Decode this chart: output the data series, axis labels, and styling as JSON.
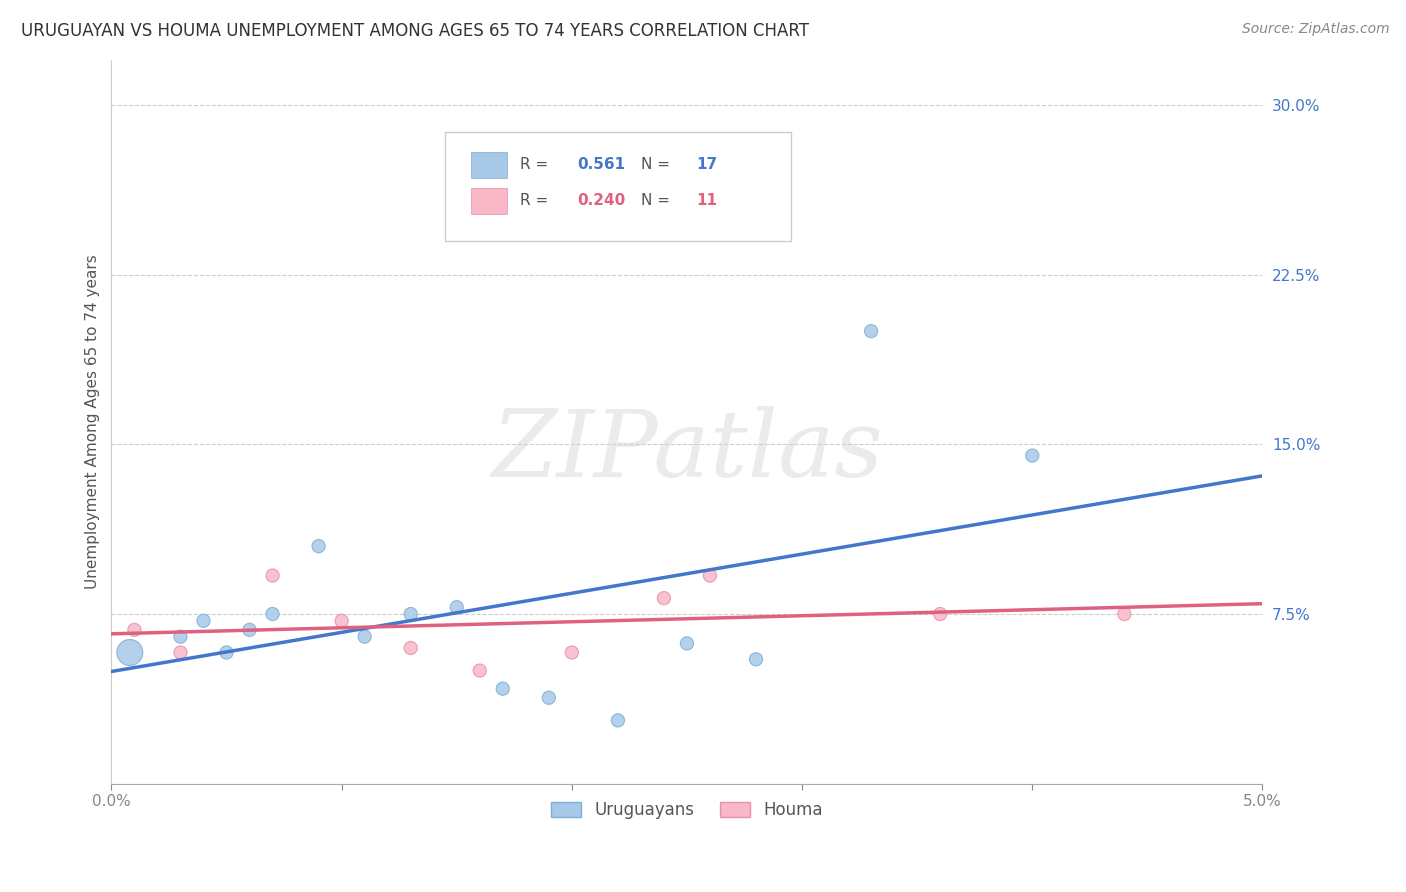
{
  "title": "URUGUAYAN VS HOUMA UNEMPLOYMENT AMONG AGES 65 TO 74 YEARS CORRELATION CHART",
  "source": "Source: ZipAtlas.com",
  "ylabel": "Unemployment Among Ages 65 to 74 years",
  "xlim": [
    0.0,
    0.05
  ],
  "ylim": [
    0.0,
    0.32
  ],
  "xticks": [
    0.0,
    0.01,
    0.02,
    0.03,
    0.04,
    0.05
  ],
  "xticklabels": [
    "0.0%",
    "",
    "",
    "",
    "",
    "5.0%"
  ],
  "yticks": [
    0.0,
    0.075,
    0.15,
    0.225,
    0.3
  ],
  "yticklabels": [
    "",
    "7.5%",
    "15.0%",
    "22.5%",
    "30.0%"
  ],
  "background_color": "#ffffff",
  "grid_color": "#cccccc",
  "watermark_text": "ZIPatlas",
  "uruguayan_color": "#a8c8e8",
  "uruguayan_edge_color": "#7bafd4",
  "houma_color": "#f8b8c8",
  "houma_edge_color": "#e890a8",
  "uruguayan_line_color": "#4477cc",
  "houma_line_color": "#e06080",
  "legend_r_uruguayan": "0.561",
  "legend_n_uruguayan": "17",
  "legend_r_houma": "0.240",
  "legend_n_houma": "11",
  "uruguayan_x": [
    0.0008,
    0.003,
    0.004,
    0.005,
    0.006,
    0.007,
    0.009,
    0.011,
    0.013,
    0.015,
    0.017,
    0.019,
    0.022,
    0.025,
    0.028,
    0.033,
    0.04
  ],
  "uruguayan_y": [
    0.058,
    0.065,
    0.072,
    0.058,
    0.068,
    0.075,
    0.105,
    0.065,
    0.075,
    0.078,
    0.042,
    0.038,
    0.028,
    0.062,
    0.055,
    0.2,
    0.145
  ],
  "houma_x": [
    0.001,
    0.003,
    0.007,
    0.01,
    0.013,
    0.016,
    0.02,
    0.024,
    0.026,
    0.036,
    0.044
  ],
  "houma_y": [
    0.068,
    0.058,
    0.092,
    0.072,
    0.06,
    0.05,
    0.058,
    0.082,
    0.092,
    0.075,
    0.075
  ],
  "uruguayan_sizes": [
    350,
    90,
    90,
    90,
    90,
    90,
    90,
    90,
    90,
    90,
    90,
    90,
    90,
    90,
    90,
    90,
    90
  ],
  "houma_sizes": [
    90,
    90,
    90,
    90,
    90,
    90,
    90,
    90,
    90,
    90,
    90
  ],
  "ytick_color": "#4477cc",
  "xtick_color": "#888888",
  "ylabel_color": "#555555",
  "title_color": "#333333",
  "source_color": "#888888"
}
